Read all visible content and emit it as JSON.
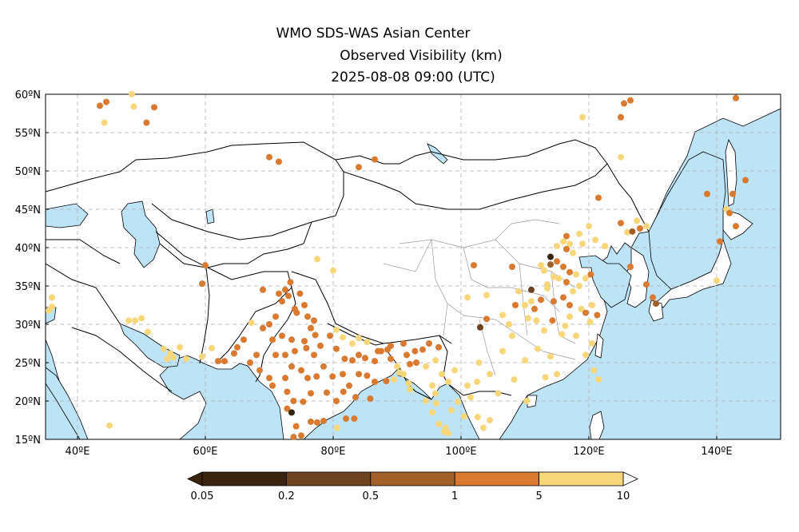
{
  "header": {
    "line1": "WMO SDS-WAS Asian Center",
    "line2": "Observed Visibility (km)",
    "line3": "2025-08-08 09:00 (UTC)"
  },
  "map": {
    "lon_range": [
      35,
      150
    ],
    "lat_range": [
      15,
      60
    ],
    "lat_ticks": [
      {
        "v": 15,
        "t": "15ºN"
      },
      {
        "v": 20,
        "t": "20ºN"
      },
      {
        "v": 25,
        "t": "25ºN"
      },
      {
        "v": 30,
        "t": "30ºN"
      },
      {
        "v": 35,
        "t": "35ºN"
      },
      {
        "v": 40,
        "t": "40ºN"
      },
      {
        "v": 45,
        "t": "45ºN"
      },
      {
        "v": 50,
        "t": "50ºN"
      },
      {
        "v": 55,
        "t": "55ºN"
      },
      {
        "v": 60,
        "t": "60ºN"
      }
    ],
    "lon_ticks": [
      {
        "v": 40,
        "t": "40ºE"
      },
      {
        "v": 60,
        "t": "60ºE"
      },
      {
        "v": 80,
        "t": "80ºE"
      },
      {
        "v": 100,
        "t": "100ºE"
      },
      {
        "v": 120,
        "t": "120ºE"
      },
      {
        "v": 140,
        "t": "140ºE"
      }
    ],
    "colors": {
      "land": "#ffffff",
      "sea": "#bde3f7",
      "grid": "#b0b0b0",
      "border": "#000000",
      "province": "#9a9a9a"
    }
  },
  "legend": {
    "labels": [
      "0.05",
      "0.2",
      "0.5",
      "1",
      "5",
      "10"
    ],
    "colors": [
      "#3a2410",
      "#6e4420",
      "#a35f28",
      "#d97a30",
      "#f8d77a"
    ]
  },
  "stations": [
    {
      "lon": 43.5,
      "lat": 58.5,
      "c": 3
    },
    {
      "lon": 44.5,
      "lat": 59,
      "c": 3
    },
    {
      "lon": 48.5,
      "lat": 60,
      "c": 4
    },
    {
      "lon": 48.8,
      "lat": 58.4,
      "c": 4
    },
    {
      "lon": 52,
      "lat": 58.3,
      "c": 3
    },
    {
      "lon": 50.8,
      "lat": 56.3,
      "c": 3
    },
    {
      "lon": 44.2,
      "lat": 56.3,
      "c": 4
    },
    {
      "lon": 70,
      "lat": 51.8,
      "c": 3
    },
    {
      "lon": 71.5,
      "lat": 51.2,
      "c": 3
    },
    {
      "lon": 84,
      "lat": 50.5,
      "c": 3
    },
    {
      "lon": 86.5,
      "lat": 51.5,
      "c": 3
    },
    {
      "lon": 119,
      "lat": 57,
      "c": 4
    },
    {
      "lon": 125,
      "lat": 57,
      "c": 3
    },
    {
      "lon": 125.5,
      "lat": 58.8,
      "c": 3
    },
    {
      "lon": 126.5,
      "lat": 59.2,
      "c": 3
    },
    {
      "lon": 143,
      "lat": 59.5,
      "c": 3
    },
    {
      "lon": 125,
      "lat": 51.8,
      "c": 4
    },
    {
      "lon": 138.5,
      "lat": 47,
      "c": 3
    },
    {
      "lon": 142.5,
      "lat": 47,
      "c": 3
    },
    {
      "lon": 144.5,
      "lat": 48.8,
      "c": 3
    },
    {
      "lon": 141.5,
      "lat": 45,
      "c": 4
    },
    {
      "lon": 142,
      "lat": 44.5,
      "c": 3
    },
    {
      "lon": 143,
      "lat": 42.8,
      "c": 3
    },
    {
      "lon": 140.5,
      "lat": 40.8,
      "c": 3
    },
    {
      "lon": 121.5,
      "lat": 46.5,
      "c": 3
    },
    {
      "lon": 125,
      "lat": 43.2,
      "c": 3
    },
    {
      "lon": 127.5,
      "lat": 43.5,
      "c": 4
    },
    {
      "lon": 128,
      "lat": 42.5,
      "c": 3
    },
    {
      "lon": 126,
      "lat": 42,
      "c": 4
    },
    {
      "lon": 129,
      "lat": 42.8,
      "c": 4
    },
    {
      "lon": 126.8,
      "lat": 42.1,
      "c": 2
    },
    {
      "lon": 120,
      "lat": 42.8,
      "c": 4
    },
    {
      "lon": 118.5,
      "lat": 41.8,
      "c": 4
    },
    {
      "lon": 116.5,
      "lat": 41.5,
      "c": 3
    },
    {
      "lon": 116,
      "lat": 40.8,
      "c": 4
    },
    {
      "lon": 117,
      "lat": 40.5,
      "c": 4
    },
    {
      "lon": 115,
      "lat": 40.2,
      "c": 4
    },
    {
      "lon": 116.5,
      "lat": 39.8,
      "c": 3
    },
    {
      "lon": 117.5,
      "lat": 39.3,
      "c": 4
    },
    {
      "lon": 119,
      "lat": 40.5,
      "c": 4
    },
    {
      "lon": 121,
      "lat": 41,
      "c": 4
    },
    {
      "lon": 122.5,
      "lat": 40.2,
      "c": 4
    },
    {
      "lon": 114,
      "lat": 38.8,
      "c": 0
    },
    {
      "lon": 115,
      "lat": 38.2,
      "c": 3
    },
    {
      "lon": 114,
      "lat": 37.8,
      "c": 2
    },
    {
      "lon": 113,
      "lat": 37,
      "c": 4
    },
    {
      "lon": 112.5,
      "lat": 37.7,
      "c": 4
    },
    {
      "lon": 116,
      "lat": 37.5,
      "c": 3
    },
    {
      "lon": 117,
      "lat": 36.8,
      "c": 3
    },
    {
      "lon": 118,
      "lat": 36.5,
      "c": 4
    },
    {
      "lon": 119.5,
      "lat": 36,
      "c": 4
    },
    {
      "lon": 120.3,
      "lat": 36.5,
      "c": 3
    },
    {
      "lon": 116.5,
      "lat": 35.5,
      "c": 3
    },
    {
      "lon": 115.3,
      "lat": 36,
      "c": 4
    },
    {
      "lon": 114.5,
      "lat": 36.2,
      "c": 4
    },
    {
      "lon": 113.5,
      "lat": 35.2,
      "c": 4
    },
    {
      "lon": 118.5,
      "lat": 35,
      "c": 4
    },
    {
      "lon": 117.5,
      "lat": 34.3,
      "c": 4
    },
    {
      "lon": 116,
      "lat": 33.5,
      "c": 3
    },
    {
      "lon": 113.5,
      "lat": 34.7,
      "c": 4
    },
    {
      "lon": 111,
      "lat": 34.5,
      "c": 1
    },
    {
      "lon": 112.5,
      "lat": 33.2,
      "c": 3
    },
    {
      "lon": 111,
      "lat": 33,
      "c": 4
    },
    {
      "lon": 114.5,
      "lat": 33,
      "c": 3
    },
    {
      "lon": 117,
      "lat": 32.5,
      "c": 3
    },
    {
      "lon": 118.8,
      "lat": 32,
      "c": 4
    },
    {
      "lon": 120.5,
      "lat": 32.5,
      "c": 4
    },
    {
      "lon": 121.3,
      "lat": 31.2,
      "c": 3
    },
    {
      "lon": 120.2,
      "lat": 30.3,
      "c": 4
    },
    {
      "lon": 119.5,
      "lat": 31.5,
      "c": 3
    },
    {
      "lon": 117,
      "lat": 31,
      "c": 4
    },
    {
      "lon": 111.5,
      "lat": 32,
      "c": 3
    },
    {
      "lon": 110,
      "lat": 32.5,
      "c": 4
    },
    {
      "lon": 109,
      "lat": 34.3,
      "c": 4
    },
    {
      "lon": 108.5,
      "lat": 32.5,
      "c": 3
    },
    {
      "lon": 110.5,
      "lat": 30.8,
      "c": 4
    },
    {
      "lon": 111.8,
      "lat": 30.5,
      "c": 4
    },
    {
      "lon": 114.3,
      "lat": 30.5,
      "c": 3
    },
    {
      "lon": 113,
      "lat": 29.2,
      "c": 4
    },
    {
      "lon": 115.8,
      "lat": 28.7,
      "c": 4
    },
    {
      "lon": 116.3,
      "lat": 29.8,
      "c": 4
    },
    {
      "lon": 118,
      "lat": 28.5,
      "c": 4
    },
    {
      "lon": 103,
      "lat": 29.6,
      "c": 1
    },
    {
      "lon": 104,
      "lat": 30.7,
      "c": 3
    },
    {
      "lon": 106.5,
      "lat": 31.2,
      "c": 4
    },
    {
      "lon": 107.5,
      "lat": 30,
      "c": 4
    },
    {
      "lon": 108,
      "lat": 28.5,
      "c": 4
    },
    {
      "lon": 104,
      "lat": 33.8,
      "c": 4
    },
    {
      "lon": 102,
      "lat": 37.7,
      "c": 3
    },
    {
      "lon": 108,
      "lat": 37.5,
      "c": 3
    },
    {
      "lon": 101,
      "lat": 33.5,
      "c": 4
    },
    {
      "lon": 120.5,
      "lat": 27.5,
      "c": 4
    },
    {
      "lon": 119.5,
      "lat": 26,
      "c": 4
    },
    {
      "lon": 112,
      "lat": 26.8,
      "c": 4
    },
    {
      "lon": 114,
      "lat": 25.8,
      "c": 4
    },
    {
      "lon": 113.2,
      "lat": 23.1,
      "c": 4
    },
    {
      "lon": 115,
      "lat": 23.5,
      "c": 4
    },
    {
      "lon": 110,
      "lat": 25.3,
      "c": 4
    },
    {
      "lon": 108.3,
      "lat": 22.8,
      "c": 4
    },
    {
      "lon": 106.5,
      "lat": 26.5,
      "c": 4
    },
    {
      "lon": 102.8,
      "lat": 25,
      "c": 4
    },
    {
      "lon": 104.5,
      "lat": 23.5,
      "c": 4
    },
    {
      "lon": 101,
      "lat": 22,
      "c": 4
    },
    {
      "lon": 110.3,
      "lat": 20,
      "c": 4
    },
    {
      "lon": 120.8,
      "lat": 24,
      "c": 4
    },
    {
      "lon": 121.5,
      "lat": 22.8,
      "c": 4
    },
    {
      "lon": 129,
      "lat": 35.2,
      "c": 3
    },
    {
      "lon": 126.5,
      "lat": 37.5,
      "c": 3
    },
    {
      "lon": 130.5,
      "lat": 32.7,
      "c": 2
    },
    {
      "lon": 130,
      "lat": 33.5,
      "c": 3
    },
    {
      "lon": 140,
      "lat": 35.7,
      "c": 4
    },
    {
      "lon": 60,
      "lat": 37.7,
      "c": 3
    },
    {
      "lon": 59.5,
      "lat": 35.3,
      "c": 3
    },
    {
      "lon": 77.5,
      "lat": 38.5,
      "c": 4
    },
    {
      "lon": 80,
      "lat": 37,
      "c": 4
    },
    {
      "lon": 69,
      "lat": 34.5,
      "c": 3
    },
    {
      "lon": 36,
      "lat": 33.5,
      "c": 4
    },
    {
      "lon": 36,
      "lat": 32.3,
      "c": 4
    },
    {
      "lon": 35.5,
      "lat": 31.8,
      "c": 4
    },
    {
      "lon": 48,
      "lat": 30.5,
      "c": 4
    },
    {
      "lon": 49,
      "lat": 30.5,
      "c": 4
    },
    {
      "lon": 50,
      "lat": 30.8,
      "c": 4
    },
    {
      "lon": 51,
      "lat": 29,
      "c": 4
    },
    {
      "lon": 53.5,
      "lat": 26.8,
      "c": 4
    },
    {
      "lon": 54.5,
      "lat": 26.2,
      "c": 4
    },
    {
      "lon": 54,
      "lat": 25.5,
      "c": 4
    },
    {
      "lon": 55,
      "lat": 25.7,
      "c": 4
    },
    {
      "lon": 56,
      "lat": 27,
      "c": 4
    },
    {
      "lon": 57,
      "lat": 25.5,
      "c": 4
    },
    {
      "lon": 59.5,
      "lat": 25.8,
      "c": 4
    },
    {
      "lon": 61,
      "lat": 26.9,
      "c": 4
    },
    {
      "lon": 45,
      "lat": 16.8,
      "c": 4
    },
    {
      "lon": 62,
      "lat": 25.2,
      "c": 3
    },
    {
      "lon": 63,
      "lat": 25.2,
      "c": 3
    },
    {
      "lon": 64.5,
      "lat": 26.2,
      "c": 3
    },
    {
      "lon": 65,
      "lat": 27,
      "c": 3
    },
    {
      "lon": 66,
      "lat": 28,
      "c": 3
    },
    {
      "lon": 67,
      "lat": 25,
      "c": 3
    },
    {
      "lon": 68,
      "lat": 26,
      "c": 3
    },
    {
      "lon": 69,
      "lat": 29.5,
      "c": 3
    },
    {
      "lon": 67.2,
      "lat": 30.2,
      "c": 4
    },
    {
      "lon": 70,
      "lat": 30,
      "c": 3
    },
    {
      "lon": 71,
      "lat": 31,
      "c": 3
    },
    {
      "lon": 72,
      "lat": 33,
      "c": 3
    },
    {
      "lon": 73,
      "lat": 33.7,
      "c": 3
    },
    {
      "lon": 74,
      "lat": 32,
      "c": 3
    },
    {
      "lon": 74.3,
      "lat": 31.5,
      "c": 3
    },
    {
      "lon": 71.5,
      "lat": 34,
      "c": 3
    },
    {
      "lon": 72.5,
      "lat": 34.5,
      "c": 3
    },
    {
      "lon": 73.3,
      "lat": 35.5,
      "c": 3
    },
    {
      "lon": 74.8,
      "lat": 34,
      "c": 3
    },
    {
      "lon": 75.5,
      "lat": 32.5,
      "c": 3
    },
    {
      "lon": 76,
      "lat": 31,
      "c": 3
    },
    {
      "lon": 77,
      "lat": 30.5,
      "c": 3
    },
    {
      "lon": 76.5,
      "lat": 29.5,
      "c": 3
    },
    {
      "lon": 77.2,
      "lat": 28.6,
      "c": 3
    },
    {
      "lon": 75.5,
      "lat": 27.8,
      "c": 3
    },
    {
      "lon": 73.5,
      "lat": 28,
      "c": 3
    },
    {
      "lon": 72,
      "lat": 28.5,
      "c": 3
    },
    {
      "lon": 70.5,
      "lat": 28,
      "c": 3
    },
    {
      "lon": 71,
      "lat": 26,
      "c": 3
    },
    {
      "lon": 72.5,
      "lat": 26,
      "c": 3
    },
    {
      "lon": 74,
      "lat": 26.5,
      "c": 3
    },
    {
      "lon": 75.8,
      "lat": 26.9,
      "c": 3
    },
    {
      "lon": 77,
      "lat": 26,
      "c": 3
    },
    {
      "lon": 78,
      "lat": 27.2,
      "c": 3
    },
    {
      "lon": 79.5,
      "lat": 28.5,
      "c": 3
    },
    {
      "lon": 80.5,
      "lat": 26.8,
      "c": 3
    },
    {
      "lon": 81.8,
      "lat": 25.5,
      "c": 3
    },
    {
      "lon": 83,
      "lat": 25.3,
      "c": 3
    },
    {
      "lon": 84,
      "lat": 26,
      "c": 3
    },
    {
      "lon": 85,
      "lat": 25.6,
      "c": 3
    },
    {
      "lon": 86.5,
      "lat": 25.2,
      "c": 3
    },
    {
      "lon": 87.5,
      "lat": 26.5,
      "c": 3
    },
    {
      "lon": 68.5,
      "lat": 24,
      "c": 3
    },
    {
      "lon": 70,
      "lat": 23,
      "c": 3
    },
    {
      "lon": 70.5,
      "lat": 22,
      "c": 3
    },
    {
      "lon": 72.5,
      "lat": 23,
      "c": 3
    },
    {
      "lon": 73.5,
      "lat": 24.5,
      "c": 3
    },
    {
      "lon": 75,
      "lat": 24,
      "c": 3
    },
    {
      "lon": 76,
      "lat": 23,
      "c": 3
    },
    {
      "lon": 77.4,
      "lat": 23.2,
      "c": 3
    },
    {
      "lon": 78.5,
      "lat": 24.5,
      "c": 3
    },
    {
      "lon": 79.9,
      "lat": 23.2,
      "c": 3
    },
    {
      "lon": 81.5,
      "lat": 23.5,
      "c": 3
    },
    {
      "lon": 82.5,
      "lat": 22,
      "c": 3
    },
    {
      "lon": 84,
      "lat": 23.5,
      "c": 3
    },
    {
      "lon": 85.3,
      "lat": 23.3,
      "c": 3
    },
    {
      "lon": 86.5,
      "lat": 22.5,
      "c": 3
    },
    {
      "lon": 88.3,
      "lat": 22.6,
      "c": 3
    },
    {
      "lon": 72.8,
      "lat": 21.2,
      "c": 3
    },
    {
      "lon": 73.8,
      "lat": 20,
      "c": 3
    },
    {
      "lon": 75.3,
      "lat": 19.9,
      "c": 3
    },
    {
      "lon": 76.5,
      "lat": 21,
      "c": 3
    },
    {
      "lon": 79,
      "lat": 21.1,
      "c": 3
    },
    {
      "lon": 80.5,
      "lat": 20,
      "c": 3
    },
    {
      "lon": 81.6,
      "lat": 21.2,
      "c": 3
    },
    {
      "lon": 83.5,
      "lat": 20.5,
      "c": 3
    },
    {
      "lon": 85.8,
      "lat": 20.3,
      "c": 3
    },
    {
      "lon": 72.8,
      "lat": 19,
      "c": 3
    },
    {
      "lon": 73.5,
      "lat": 18.5,
      "c": 0
    },
    {
      "lon": 74.2,
      "lat": 16.7,
      "c": 3
    },
    {
      "lon": 75,
      "lat": 15.5,
      "c": 3
    },
    {
      "lon": 73.8,
      "lat": 15.3,
      "c": 3
    },
    {
      "lon": 76.5,
      "lat": 17.3,
      "c": 3
    },
    {
      "lon": 77.5,
      "lat": 17.2,
      "c": 3
    },
    {
      "lon": 78.5,
      "lat": 17.4,
      "c": 3
    },
    {
      "lon": 80.6,
      "lat": 16.5,
      "c": 4
    },
    {
      "lon": 82,
      "lat": 17.7,
      "c": 3
    },
    {
      "lon": 83.3,
      "lat": 17.7,
      "c": 3
    },
    {
      "lon": 88.5,
      "lat": 26.7,
      "c": 3
    },
    {
      "lon": 89,
      "lat": 25.5,
      "c": 3
    },
    {
      "lon": 90,
      "lat": 24.5,
      "c": 4
    },
    {
      "lon": 90.4,
      "lat": 23.7,
      "c": 4
    },
    {
      "lon": 91,
      "lat": 23.5,
      "c": 4
    },
    {
      "lon": 91.8,
      "lat": 22.3,
      "c": 4
    },
    {
      "lon": 92,
      "lat": 24.8,
      "c": 3
    },
    {
      "lon": 91.5,
      "lat": 26,
      "c": 3
    },
    {
      "lon": 92.8,
      "lat": 26.5,
      "c": 3
    },
    {
      "lon": 94,
      "lat": 26.7,
      "c": 3
    },
    {
      "lon": 95,
      "lat": 27.5,
      "c": 3
    },
    {
      "lon": 93,
      "lat": 25,
      "c": 3
    },
    {
      "lon": 89.5,
      "lat": 22.8,
      "c": 4
    },
    {
      "lon": 92,
      "lat": 21.5,
      "c": 4
    },
    {
      "lon": 89,
      "lat": 27.2,
      "c": 3
    },
    {
      "lon": 85.3,
      "lat": 27.7,
      "c": 4
    },
    {
      "lon": 84,
      "lat": 28.2,
      "c": 4
    },
    {
      "lon": 87,
      "lat": 26.5,
      "c": 3
    },
    {
      "lon": 83,
      "lat": 27.5,
      "c": 4
    },
    {
      "lon": 81.5,
      "lat": 28.3,
      "c": 4
    },
    {
      "lon": 80.5,
      "lat": 29.3,
      "c": 4
    },
    {
      "lon": 91,
      "lat": 27.5,
      "c": 3
    },
    {
      "lon": 96.5,
      "lat": 27,
      "c": 3
    },
    {
      "lon": 94.5,
      "lat": 24.5,
      "c": 4
    },
    {
      "lon": 96,
      "lat": 25.3,
      "c": 4
    },
    {
      "lon": 95.5,
      "lat": 22,
      "c": 4
    },
    {
      "lon": 96,
      "lat": 21,
      "c": 4
    },
    {
      "lon": 94.5,
      "lat": 20,
      "c": 4
    },
    {
      "lon": 96.1,
      "lat": 19.7,
      "c": 4
    },
    {
      "lon": 95.5,
      "lat": 18.5,
      "c": 4
    },
    {
      "lon": 96.5,
      "lat": 17,
      "c": 4
    },
    {
      "lon": 97.6,
      "lat": 16.5,
      "c": 4
    },
    {
      "lon": 98,
      "lat": 15.8,
      "c": 4
    },
    {
      "lon": 97.3,
      "lat": 16,
      "c": 4
    },
    {
      "lon": 98.5,
      "lat": 18.8,
      "c": 4
    },
    {
      "lon": 99.5,
      "lat": 19.9,
      "c": 4
    },
    {
      "lon": 100.5,
      "lat": 18,
      "c": 4
    },
    {
      "lon": 102.6,
      "lat": 17.9,
      "c": 4
    },
    {
      "lon": 103.5,
      "lat": 16.5,
      "c": 4
    },
    {
      "lon": 101.5,
      "lat": 20.5,
      "c": 4
    },
    {
      "lon": 98,
      "lat": 22.5,
      "c": 4
    },
    {
      "lon": 97,
      "lat": 23.5,
      "c": 4
    },
    {
      "lon": 99,
      "lat": 24,
      "c": 4
    },
    {
      "lon": 102.5,
      "lat": 22.5,
      "c": 4
    },
    {
      "lon": 105.8,
      "lat": 21,
      "c": 4
    },
    {
      "lon": 104.5,
      "lat": 17.5,
      "c": 4
    }
  ]
}
